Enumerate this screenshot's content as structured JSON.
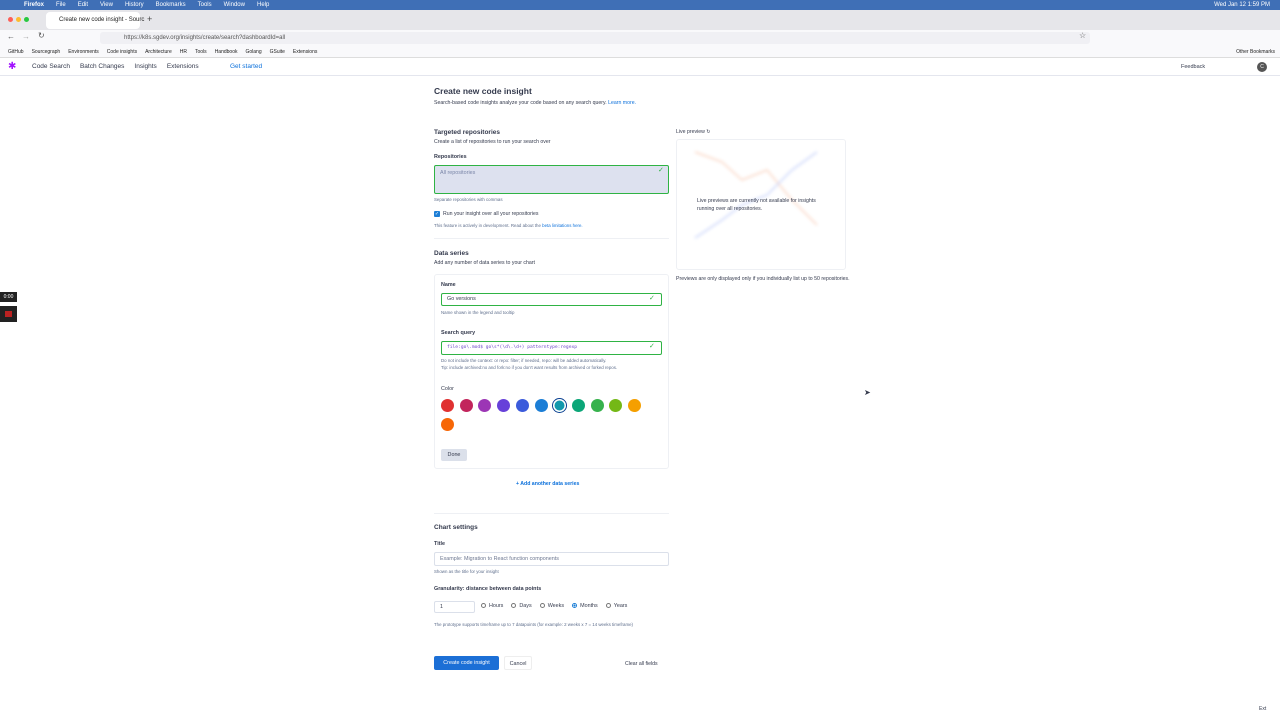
{
  "menu_bar": {
    "app": "Firefox",
    "items": [
      "File",
      "Edit",
      "View",
      "History",
      "Bookmarks",
      "Tools",
      "Window",
      "Help"
    ],
    "clock": "Wed Jan 12  1:59 PM"
  },
  "browser": {
    "tab_title": "Create new code insight - Sourc",
    "url": "https://k8s.sgdev.org/insights/create/search?dashboardId=all",
    "bookmarks": [
      "GitHub",
      "Sourcegraph",
      "Environments",
      "Code insights",
      "Architecture",
      "HR",
      "Tools",
      "Handbook",
      "Golang",
      "GSuite",
      "Extensions"
    ],
    "other_bookmarks": "Other Bookmarks"
  },
  "app_nav": {
    "items": [
      "Code Search",
      "Batch Changes",
      "Insights",
      "Extensions"
    ],
    "get_started": "Get started",
    "feedback": "Feedback"
  },
  "page": {
    "title": "Create new code insight",
    "subtitle": "Search-based code insights analyze your code based on any search query.",
    "learn_more": "Learn more."
  },
  "repositories": {
    "heading": "Targeted repositories",
    "description": "Create a list of repositories to run your search over",
    "label": "Repositories",
    "value": "All repositories",
    "hint": "Separate repositories with commas",
    "checkbox_label": "Run your insight over all your repositories",
    "checked": true,
    "note": "This feature is actively in development. Read about the",
    "note_link": "beta limitations here."
  },
  "data_series": {
    "heading": "Data series",
    "description": "Add any number of data series to your chart",
    "name_label": "Name",
    "name_value": "Go versions",
    "name_hint": "Name shown in the legend and tooltip",
    "query_label": "Search query",
    "query_value": "file:go\\.mod$ go\\s*(\\d\\.\\d+) patterntype:regexp",
    "query_hint_1": "Do not include the context: or repo: filter; if needed, repo: will be added automatically.",
    "query_hint_2": "Tip: include archived:no and fork:no if you don't want results from archived or forked repos.",
    "color_label": "Color",
    "colors": [
      "#e03131",
      "#c2255c",
      "#9c36b5",
      "#6741d9",
      "#3b5bdb",
      "#1c7ed6",
      "#1098ad",
      "#0ca678",
      "#37b24d",
      "#74b816",
      "#f59f00",
      "#f76707"
    ],
    "selected_color": 6,
    "done": "Done",
    "add_another": "+ Add another data series"
  },
  "chart_settings": {
    "heading": "Chart settings",
    "title_label": "Title",
    "title_placeholder": "Example: Migration to React function components",
    "title_hint": "Shown as the title for your insight",
    "granularity_label": "Granularity: distance between data points",
    "granularity_value": "1",
    "units": [
      "Hours",
      "Days",
      "Weeks",
      "Months",
      "Years"
    ],
    "selected_unit": 3,
    "granularity_hint": "The prototype supports timeframe up to 7 datapoints (for example: 2 weeks x 7 = 14 weeks timeframe)"
  },
  "actions": {
    "submit": "Create code insight",
    "cancel": "Cancel",
    "clear": "Clear all fields"
  },
  "preview": {
    "label": "Live preview",
    "overlay": "Live previews are currently not available for insights running over all repositories.",
    "note": "Previews are only displayed only if you individually list up to 50 repositories."
  },
  "overlay": {
    "timer": "0:00",
    "ext": "Ext"
  }
}
